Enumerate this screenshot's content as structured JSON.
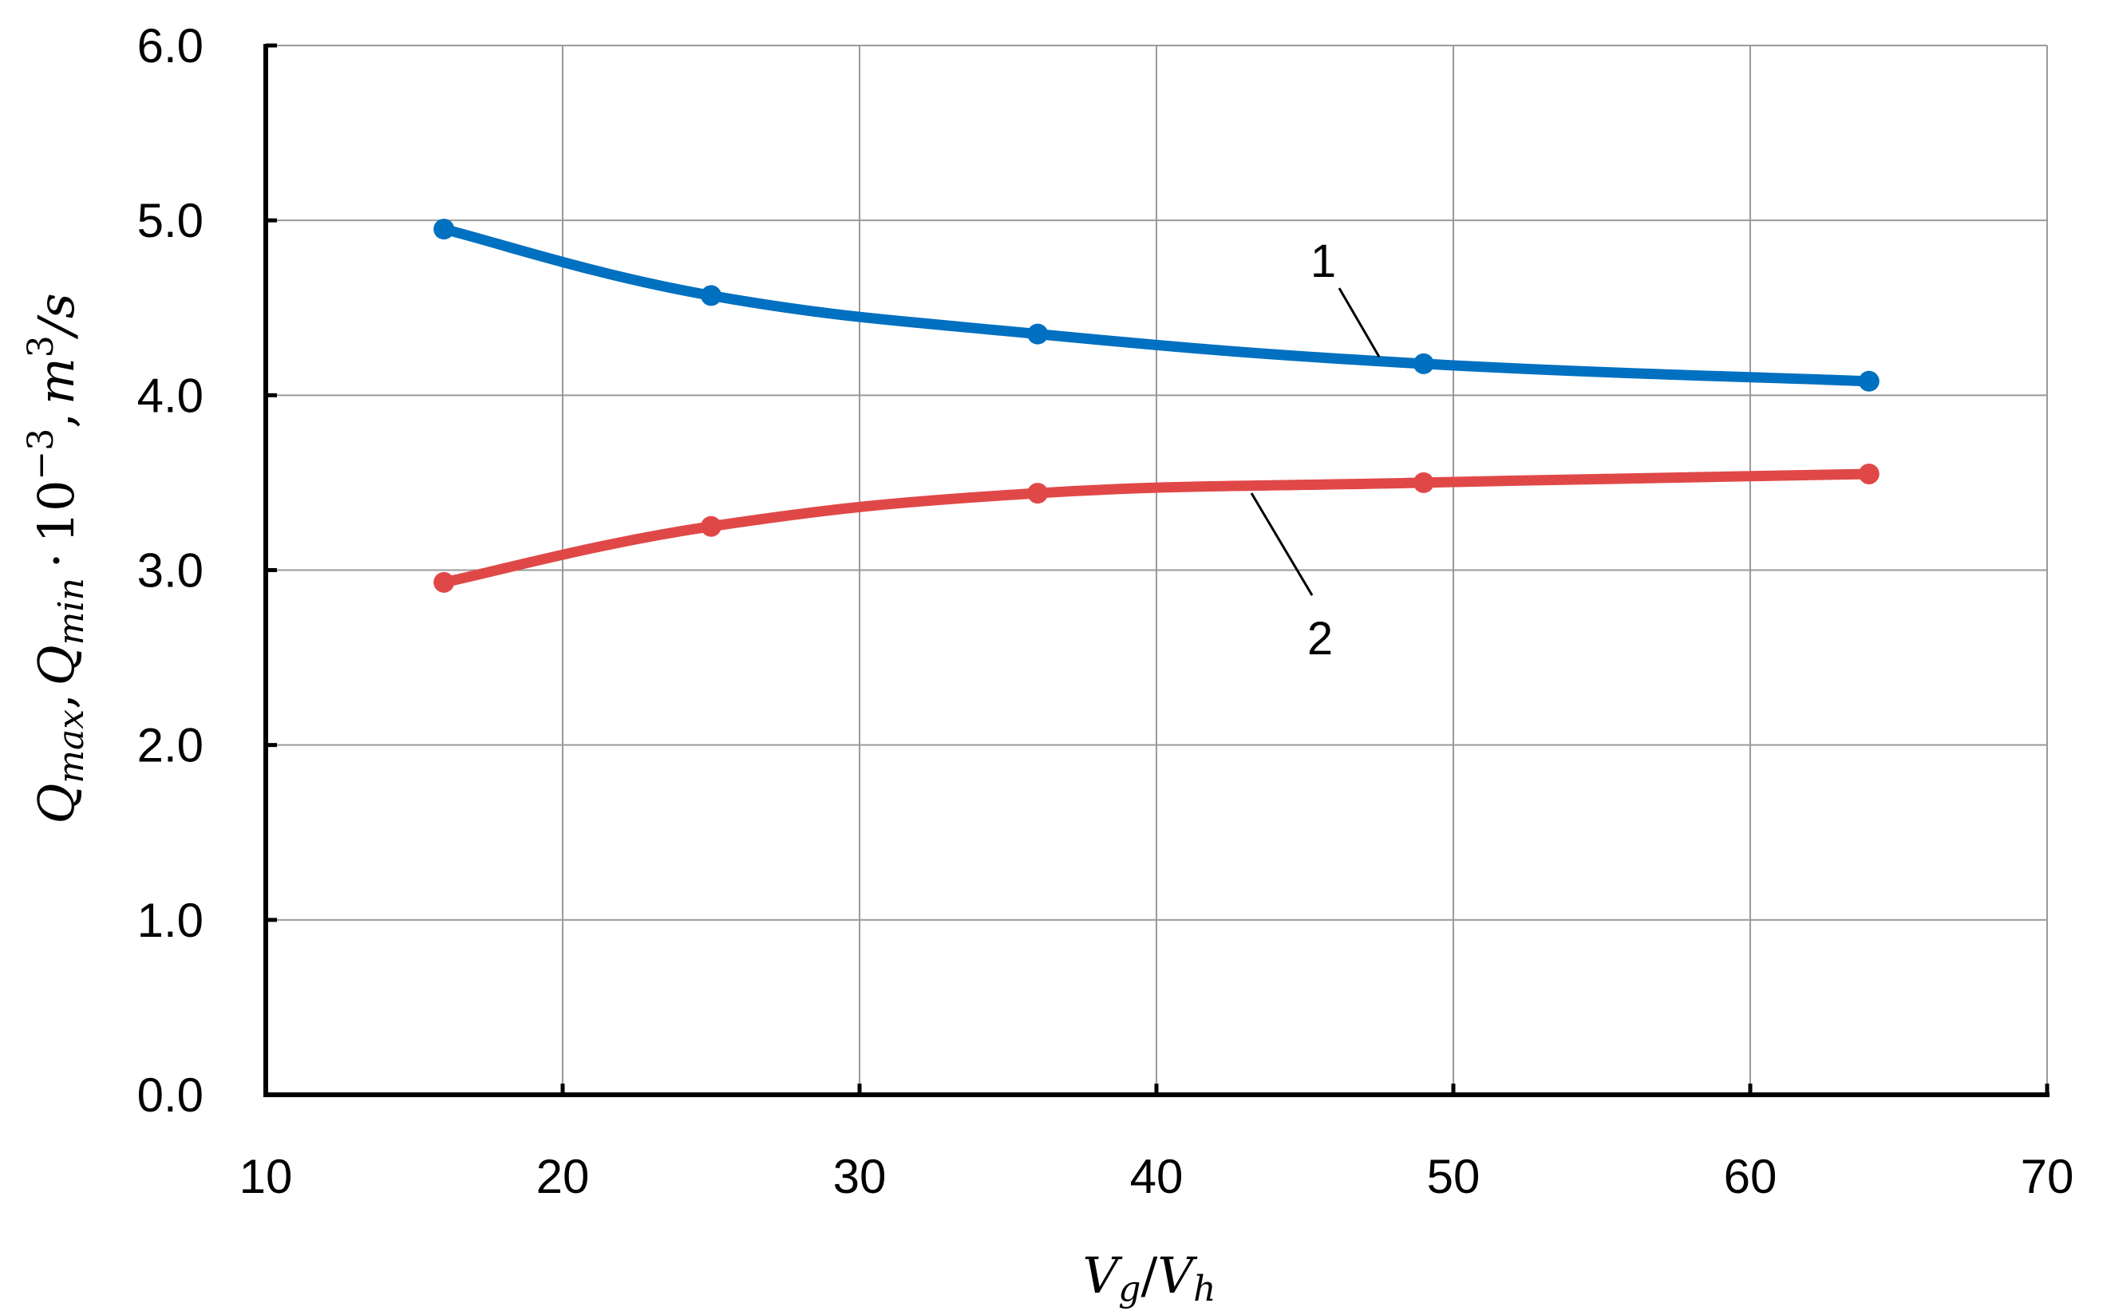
{
  "chart_data": {
    "type": "line",
    "x": [
      16,
      25,
      36,
      49,
      64
    ],
    "series": [
      {
        "label": "1",
        "color": "#0070C0",
        "values": [
          4.95,
          4.57,
          4.35,
          4.18,
          4.08
        ]
      },
      {
        "label": "2",
        "color": "#E04848",
        "values": [
          2.93,
          3.25,
          3.44,
          3.5,
          3.55
        ]
      }
    ],
    "xlim": [
      10,
      70
    ],
    "ylim": [
      0,
      6
    ],
    "xticks": [
      "10",
      "20",
      "30",
      "40",
      "50",
      "60",
      "70"
    ],
    "yticks": [
      "0.0",
      "1.0",
      "2.0",
      "3.0",
      "4.0",
      "5.0",
      "6.0"
    ],
    "xlabel": {
      "v1": "V",
      "s1": "g",
      "slash": "/",
      "v2": "V",
      "s2": "h"
    },
    "ylabel": {
      "q1": "Q",
      "s1": "max",
      "comma1": ",",
      "q2": "Q",
      "s2": "min",
      "dot": "·",
      "base": "10",
      "exp": "−3",
      "comma2": ",",
      "unit": "m",
      "unit_exp": "3",
      "per": "/s"
    },
    "annotations": [
      {
        "text": "1",
        "x": 47.5,
        "y": 4.22
      },
      {
        "text": "2",
        "x": 43.2,
        "y": 3.44
      }
    ],
    "grid": true
  }
}
